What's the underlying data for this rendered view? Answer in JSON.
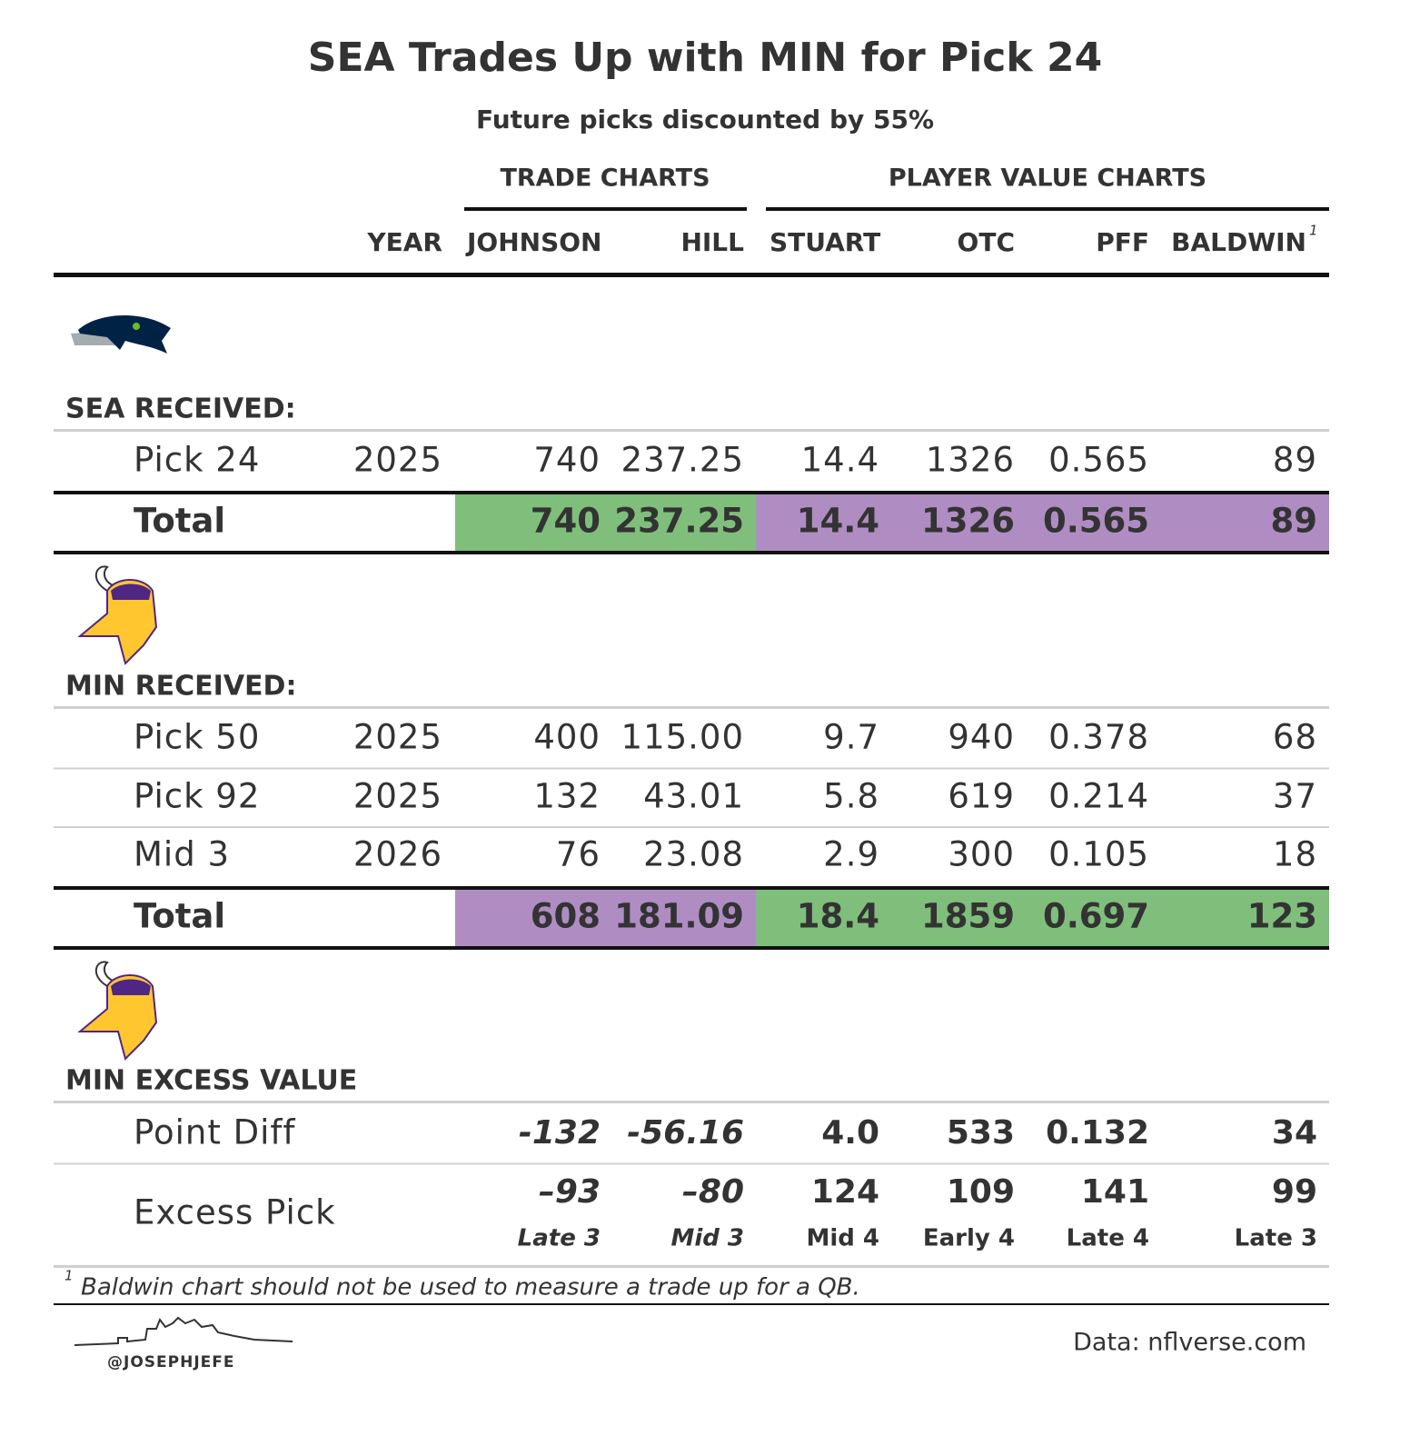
{
  "header": {
    "title": "SEA Trades Up with MIN for Pick 24",
    "subtitle": "Future picks discounted by 55%"
  },
  "column_groups": [
    "TRADE CHARTS",
    "PLAYER VALUE CHARTS"
  ],
  "columns": [
    "YEAR",
    "JOHNSON",
    "HILL",
    "STUART",
    "OTC",
    "PFF",
    "BALDWIN"
  ],
  "column_note": "1",
  "sections": [
    {
      "label": "SEA RECEIVED:",
      "rows": [
        {
          "item": "Pick 24",
          "year": "2025",
          "values": [
            "740",
            "237.25",
            "14.4",
            "1326",
            "0.565",
            "89"
          ]
        }
      ],
      "total": {
        "label": "Total",
        "values": [
          "740",
          "237.25",
          "14.4",
          "1326",
          "0.565",
          "89"
        ],
        "fills": [
          "#7fbf7b",
          "#7fbf7b",
          "#af8dc3",
          "#af8dc3",
          "#af8dc3",
          "#af8dc3"
        ],
        "text_colors": [
          "#111111",
          "#111111",
          "#ffffff",
          "#ffffff",
          "#ffffff",
          "#ffffff"
        ]
      }
    },
    {
      "label": "MIN RECEIVED:",
      "rows": [
        {
          "item": "Pick 50",
          "year": "2025",
          "values": [
            "400",
            "115.00",
            "9.7",
            "940",
            "0.378",
            "68"
          ]
        },
        {
          "item": "Pick 92",
          "year": "2025",
          "values": [
            "132",
            "43.01",
            "5.8",
            "619",
            "0.214",
            "37"
          ]
        },
        {
          "item": "Mid 3",
          "year": "2026",
          "values": [
            "76",
            "23.08",
            "2.9",
            "300",
            "0.105",
            "18"
          ]
        }
      ],
      "total": {
        "label": "Total",
        "values": [
          "608",
          "181.09",
          "18.4",
          "1859",
          "0.697",
          "123"
        ],
        "fills": [
          "#af8dc3",
          "#af8dc3",
          "#7fbf7b",
          "#7fbf7b",
          "#7fbf7b",
          "#7fbf7b"
        ],
        "text_colors": [
          "#ffffff",
          "#ffffff",
          "#111111",
          "#111111",
          "#111111",
          "#111111"
        ]
      }
    },
    {
      "label": "MIN EXCESS VALUE",
      "colors": [
        "#762a83",
        "#762a83",
        "#1b7837",
        "#1b7837",
        "#1b7837",
        "#1b7837"
      ],
      "rows": [
        {
          "item": "Point Diff",
          "values": [
            "-132",
            "-56.16",
            "4.0",
            "533",
            "0.132",
            "34"
          ]
        },
        {
          "item": "Excess Pick",
          "values": [
            "–93",
            "–80",
            "124",
            "109",
            "141",
            "99"
          ],
          "notes": [
            "Late 3",
            "Mid 3",
            "Mid 4",
            "Early 4",
            "Late 4",
            "Late 3"
          ]
        }
      ]
    }
  ],
  "footnote": {
    "marker": "1",
    "text": "Baldwin chart should not be used to measure a trade up for a QB."
  },
  "footer": {
    "handle": "@JOSEPHJEFE",
    "source": "Data: nflverse.com"
  }
}
